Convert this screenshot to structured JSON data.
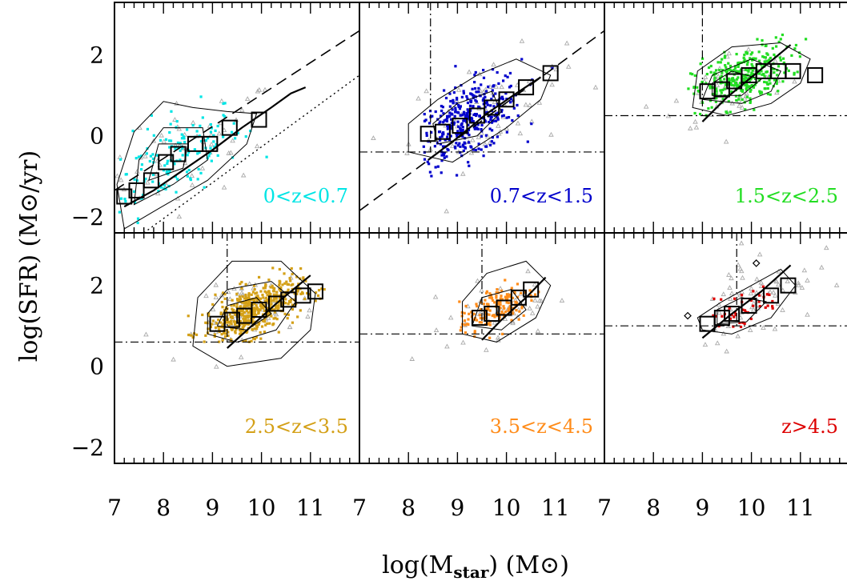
{
  "figure": {
    "ylabel": "log(SFR) (M⊙/yr)",
    "xlabel": "log(M",
    "xlabel_sub": "star",
    "xlabel_tail": ") (M⊙)",
    "xtick_labels": [
      "7",
      "8",
      "9",
      "10",
      "11"
    ],
    "ytick_labels": [
      "−2",
      "0",
      "2"
    ]
  },
  "chart_data": [
    {
      "type": "scatter",
      "label": "0<z<0.7",
      "color": "#00e5e5",
      "xlim": [
        7,
        12
      ],
      "ylim": [
        -2.4,
        3.3
      ],
      "binned_medians": [
        [
          7.2,
          -1.5
        ],
        [
          7.45,
          -1.35
        ],
        [
          7.75,
          -1.1
        ],
        [
          8.05,
          -0.65
        ],
        [
          8.3,
          -0.45
        ],
        [
          8.65,
          -0.2
        ],
        [
          8.95,
          -0.2
        ],
        [
          9.35,
          0.2
        ],
        [
          9.95,
          0.4
        ]
      ],
      "cloud": {
        "cx": 8.2,
        "cy": -0.55,
        "sx": 0.7,
        "sy": 0.65,
        "rho": 0.6,
        "n": 150,
        "xmin": 7.0,
        "xmax": 11.3,
        "ymin": -2.4,
        "ymax": 2.4
      },
      "grey_cloud": {
        "cx": 8.6,
        "cy": -0.3,
        "sx": 0.9,
        "sy": 0.7,
        "rho": 0.5,
        "n": 60
      },
      "dashed_line": [
        [
          7,
          -1.35
        ],
        [
          12,
          2.6
        ]
      ],
      "dotted_line": [
        [
          7.6,
          -2.4
        ],
        [
          12,
          1.5
        ]
      ],
      "solid_curve": [
        [
          7.2,
          -1.75
        ],
        [
          7.8,
          -1.35
        ],
        [
          8.4,
          -0.85
        ],
        [
          9.0,
          -0.35
        ],
        [
          9.6,
          0.2
        ],
        [
          10.2,
          0.7
        ],
        [
          10.6,
          1.05
        ],
        [
          10.9,
          1.2
        ]
      ],
      "contours": [
        [
          [
            7.2,
            -2.3
          ],
          [
            7.9,
            -1.8
          ],
          [
            8.9,
            -1.1
          ],
          [
            9.7,
            -0.2
          ],
          [
            9.9,
            0.55
          ],
          [
            9.3,
            0.6
          ],
          [
            8.6,
            0.7
          ],
          [
            8.0,
            0.85
          ],
          [
            7.4,
            0.1
          ],
          [
            7.05,
            -1.2
          ]
        ],
        [
          [
            7.4,
            -1.7
          ],
          [
            8.2,
            -1.2
          ],
          [
            8.9,
            -0.6
          ],
          [
            8.8,
            0.2
          ],
          [
            8.0,
            0.2
          ],
          [
            7.5,
            -0.6
          ]
        ],
        [
          [
            7.7,
            -1.1
          ],
          [
            8.4,
            -0.8
          ],
          [
            8.5,
            -0.2
          ],
          [
            7.9,
            -0.2
          ]
        ]
      ]
    },
    {
      "type": "scatter",
      "label": "0.7<z<1.5",
      "color": "#0000cc",
      "xlim": [
        7,
        12
      ],
      "ylim": [
        -2.4,
        3.3
      ],
      "binned_medians": [
        [
          8.4,
          0.05
        ],
        [
          8.7,
          0.1
        ],
        [
          9.05,
          0.25
        ],
        [
          9.4,
          0.5
        ],
        [
          9.7,
          0.7
        ],
        [
          10.0,
          0.9
        ],
        [
          10.4,
          1.2
        ],
        [
          10.9,
          1.55
        ]
      ],
      "cloud": {
        "cx": 9.2,
        "cy": 0.35,
        "sx": 0.55,
        "sy": 0.55,
        "rho": 0.55,
        "n": 360,
        "xmin": 8.3,
        "xmax": 11.2,
        "ymin": -1.5,
        "ymax": 2.2
      },
      "grey_cloud": {
        "cx": 9.6,
        "cy": 0.6,
        "sx": 0.8,
        "sy": 0.7,
        "rho": 0.4,
        "n": 70
      },
      "dashed_line": [
        [
          7,
          -1.85
        ],
        [
          12,
          2.6
        ]
      ],
      "dotdash_h": -0.4,
      "dotdash_v": 8.45,
      "solid_curve": [
        [
          8.4,
          -0.6
        ],
        [
          9.0,
          -0.05
        ],
        [
          9.6,
          0.55
        ],
        [
          10.2,
          1.05
        ],
        [
          10.7,
          1.45
        ]
      ],
      "contours": [
        [
          [
            8.0,
            -0.4
          ],
          [
            8.9,
            -0.65
          ],
          [
            10.0,
            0.2
          ],
          [
            10.7,
            0.9
          ],
          [
            10.9,
            1.5
          ],
          [
            10.2,
            1.9
          ],
          [
            9.4,
            1.5
          ],
          [
            8.6,
            0.9
          ],
          [
            8.0,
            0.3
          ]
        ],
        [
          [
            8.6,
            -0.2
          ],
          [
            9.4,
            0.0
          ],
          [
            9.9,
            0.6
          ],
          [
            9.7,
            1.1
          ],
          [
            9.0,
            0.8
          ],
          [
            8.5,
            0.3
          ]
        ]
      ]
    },
    {
      "type": "scatter",
      "label": "1.5<z<2.5",
      "color": "#22dd22",
      "xlim": [
        7,
        12
      ],
      "ylim": [
        -2.4,
        3.3
      ],
      "binned_medians": [
        [
          9.1,
          1.1
        ],
        [
          9.4,
          1.15
        ],
        [
          9.65,
          1.35
        ],
        [
          9.95,
          1.5
        ],
        [
          10.25,
          1.6
        ],
        [
          10.55,
          1.6
        ],
        [
          10.85,
          1.6
        ],
        [
          11.3,
          1.5
        ]
      ],
      "cloud": {
        "cx": 9.8,
        "cy": 1.45,
        "sx": 0.5,
        "sy": 0.4,
        "rho": 0.5,
        "n": 320,
        "xmin": 8.7,
        "xmax": 11.2,
        "ymin": 0.5,
        "ymax": 2.6
      },
      "grey_cloud": {
        "cx": 9.6,
        "cy": 1.2,
        "sx": 0.6,
        "sy": 0.5,
        "rho": 0.4,
        "n": 60
      },
      "dotdash_h": 0.5,
      "dotdash_v": 9.0,
      "solid_curve": [
        [
          9.0,
          0.35
        ],
        [
          9.5,
          0.95
        ],
        [
          10.0,
          1.45
        ],
        [
          10.5,
          1.95
        ],
        [
          10.8,
          2.25
        ]
      ],
      "contours": [
        [
          [
            8.8,
            0.7
          ],
          [
            9.5,
            0.5
          ],
          [
            10.4,
            0.8
          ],
          [
            11.0,
            1.3
          ],
          [
            11.2,
            1.9
          ],
          [
            10.6,
            2.3
          ],
          [
            9.6,
            2.2
          ],
          [
            8.9,
            1.6
          ]
        ],
        [
          [
            9.0,
            0.9
          ],
          [
            9.8,
            0.8
          ],
          [
            10.4,
            1.1
          ],
          [
            10.6,
            1.6
          ],
          [
            10.0,
            1.9
          ],
          [
            9.2,
            1.5
          ]
        ],
        [
          [
            9.2,
            1.0
          ],
          [
            9.8,
            1.0
          ],
          [
            10.2,
            1.4
          ],
          [
            9.6,
            1.6
          ],
          [
            9.2,
            1.3
          ]
        ]
      ]
    },
    {
      "type": "scatter",
      "label": "2.5<z<3.5",
      "color": "#d4a017",
      "xlim": [
        7,
        12
      ],
      "ylim": [
        -2.4,
        3.3
      ],
      "binned_medians": [
        [
          9.1,
          1.05
        ],
        [
          9.4,
          1.15
        ],
        [
          9.65,
          1.25
        ],
        [
          9.95,
          1.4
        ],
        [
          10.3,
          1.55
        ],
        [
          10.55,
          1.65
        ],
        [
          10.85,
          1.75
        ],
        [
          11.1,
          1.85
        ]
      ],
      "cloud": {
        "cx": 9.8,
        "cy": 1.35,
        "sx": 0.5,
        "sy": 0.38,
        "rho": 0.6,
        "n": 520,
        "xmin": 8.5,
        "xmax": 11.3,
        "ymin": 0.6,
        "ymax": 2.5
      },
      "grey_cloud": {
        "cx": 9.9,
        "cy": 1.4,
        "sx": 0.6,
        "sy": 0.45,
        "rho": 0.4,
        "n": 60
      },
      "dotdash_h": 0.6,
      "dotdash_v": 9.3,
      "solid_curve": [
        [
          9.3,
          0.45
        ],
        [
          9.8,
          1.0
        ],
        [
          10.3,
          1.55
        ],
        [
          10.8,
          2.05
        ],
        [
          11.0,
          2.25
        ]
      ],
      "contours": [
        [
          [
            8.6,
            0.5
          ],
          [
            9.3,
            0.0
          ],
          [
            10.4,
            0.2
          ],
          [
            11.0,
            0.9
          ],
          [
            11.1,
            1.8
          ],
          [
            10.4,
            2.6
          ],
          [
            9.4,
            2.6
          ],
          [
            8.7,
            1.7
          ]
        ],
        [
          [
            8.9,
            0.8
          ],
          [
            9.5,
            0.6
          ],
          [
            10.3,
            0.9
          ],
          [
            10.7,
            1.6
          ],
          [
            10.2,
            2.1
          ],
          [
            9.3,
            1.9
          ],
          [
            8.9,
            1.3
          ]
        ],
        [
          [
            9.1,
            1.0
          ],
          [
            9.7,
            0.9
          ],
          [
            10.2,
            1.3
          ],
          [
            9.9,
            1.7
          ],
          [
            9.3,
            1.5
          ]
        ]
      ]
    },
    {
      "type": "scatter",
      "label": "3.5<z<4.5",
      "color": "#ff8c1a",
      "xlim": [
        7,
        12
      ],
      "ylim": [
        -2.4,
        3.3
      ],
      "binned_medians": [
        [
          9.45,
          1.2
        ],
        [
          9.7,
          1.3
        ],
        [
          9.95,
          1.45
        ],
        [
          10.25,
          1.7
        ],
        [
          10.5,
          1.9
        ]
      ],
      "cloud": {
        "cx": 9.8,
        "cy": 1.45,
        "sx": 0.4,
        "sy": 0.35,
        "rho": 0.6,
        "n": 160,
        "xmin": 9.0,
        "xmax": 10.9,
        "ymin": 0.7,
        "ymax": 2.3
      },
      "grey_cloud": {
        "cx": 9.9,
        "cy": 1.4,
        "sx": 0.55,
        "sy": 0.45,
        "rho": 0.4,
        "n": 45
      },
      "dotdash_h": 0.8,
      "dotdash_v": 9.5,
      "solid_curve": [
        [
          9.5,
          0.65
        ],
        [
          9.9,
          1.15
        ],
        [
          10.4,
          1.7
        ],
        [
          10.8,
          2.2
        ]
      ],
      "contours": [
        [
          [
            9.1,
            0.8
          ],
          [
            9.8,
            0.6
          ],
          [
            10.6,
            1.2
          ],
          [
            10.9,
            2.0
          ],
          [
            10.4,
            2.6
          ],
          [
            9.6,
            2.3
          ],
          [
            9.1,
            1.6
          ]
        ],
        [
          [
            9.3,
            1.0
          ],
          [
            9.9,
            0.9
          ],
          [
            10.4,
            1.4
          ],
          [
            10.1,
            1.9
          ],
          [
            9.5,
            1.7
          ]
        ]
      ]
    },
    {
      "type": "scatter",
      "label": "z>4.5",
      "color": "#dd0000",
      "xlim": [
        7,
        12
      ],
      "ylim": [
        -2.4,
        3.3
      ],
      "binned_medians": [
        [
          9.1,
          1.05
        ],
        [
          9.4,
          1.2
        ],
        [
          9.6,
          1.3
        ],
        [
          9.95,
          1.5
        ],
        [
          10.4,
          1.75
        ],
        [
          10.75,
          2.0
        ]
      ],
      "cloud": {
        "cx": 9.8,
        "cy": 1.4,
        "sx": 0.4,
        "sy": 0.3,
        "rho": 0.6,
        "n": 45,
        "xmin": 8.9,
        "xmax": 10.9,
        "ymin": 0.8,
        "ymax": 2.6
      },
      "grey_cloud": {
        "cx": 10.1,
        "cy": 1.8,
        "sx": 0.6,
        "sy": 0.6,
        "rho": 0.4,
        "n": 70
      },
      "open_diamonds": [
        [
          8.7,
          1.25
        ],
        [
          10.1,
          2.55
        ]
      ],
      "dotdash_h": 1.0,
      "dotdash_v": 9.7,
      "solid_curve": [
        [
          9.0,
          0.7
        ],
        [
          9.6,
          1.3
        ],
        [
          10.2,
          1.85
        ],
        [
          10.8,
          2.5
        ]
      ],
      "contours": [
        [
          [
            9.0,
            0.9
          ],
          [
            9.6,
            0.8
          ],
          [
            10.4,
            1.2
          ],
          [
            10.9,
            2.0
          ],
          [
            10.6,
            2.4
          ],
          [
            10.0,
            2.0
          ],
          [
            9.4,
            1.6
          ],
          [
            8.9,
            1.2
          ]
        ],
        [
          [
            9.3,
            1.05
          ],
          [
            9.9,
            1.1
          ],
          [
            10.3,
            1.6
          ],
          [
            9.8,
            1.7
          ],
          [
            9.3,
            1.4
          ]
        ]
      ]
    }
  ]
}
